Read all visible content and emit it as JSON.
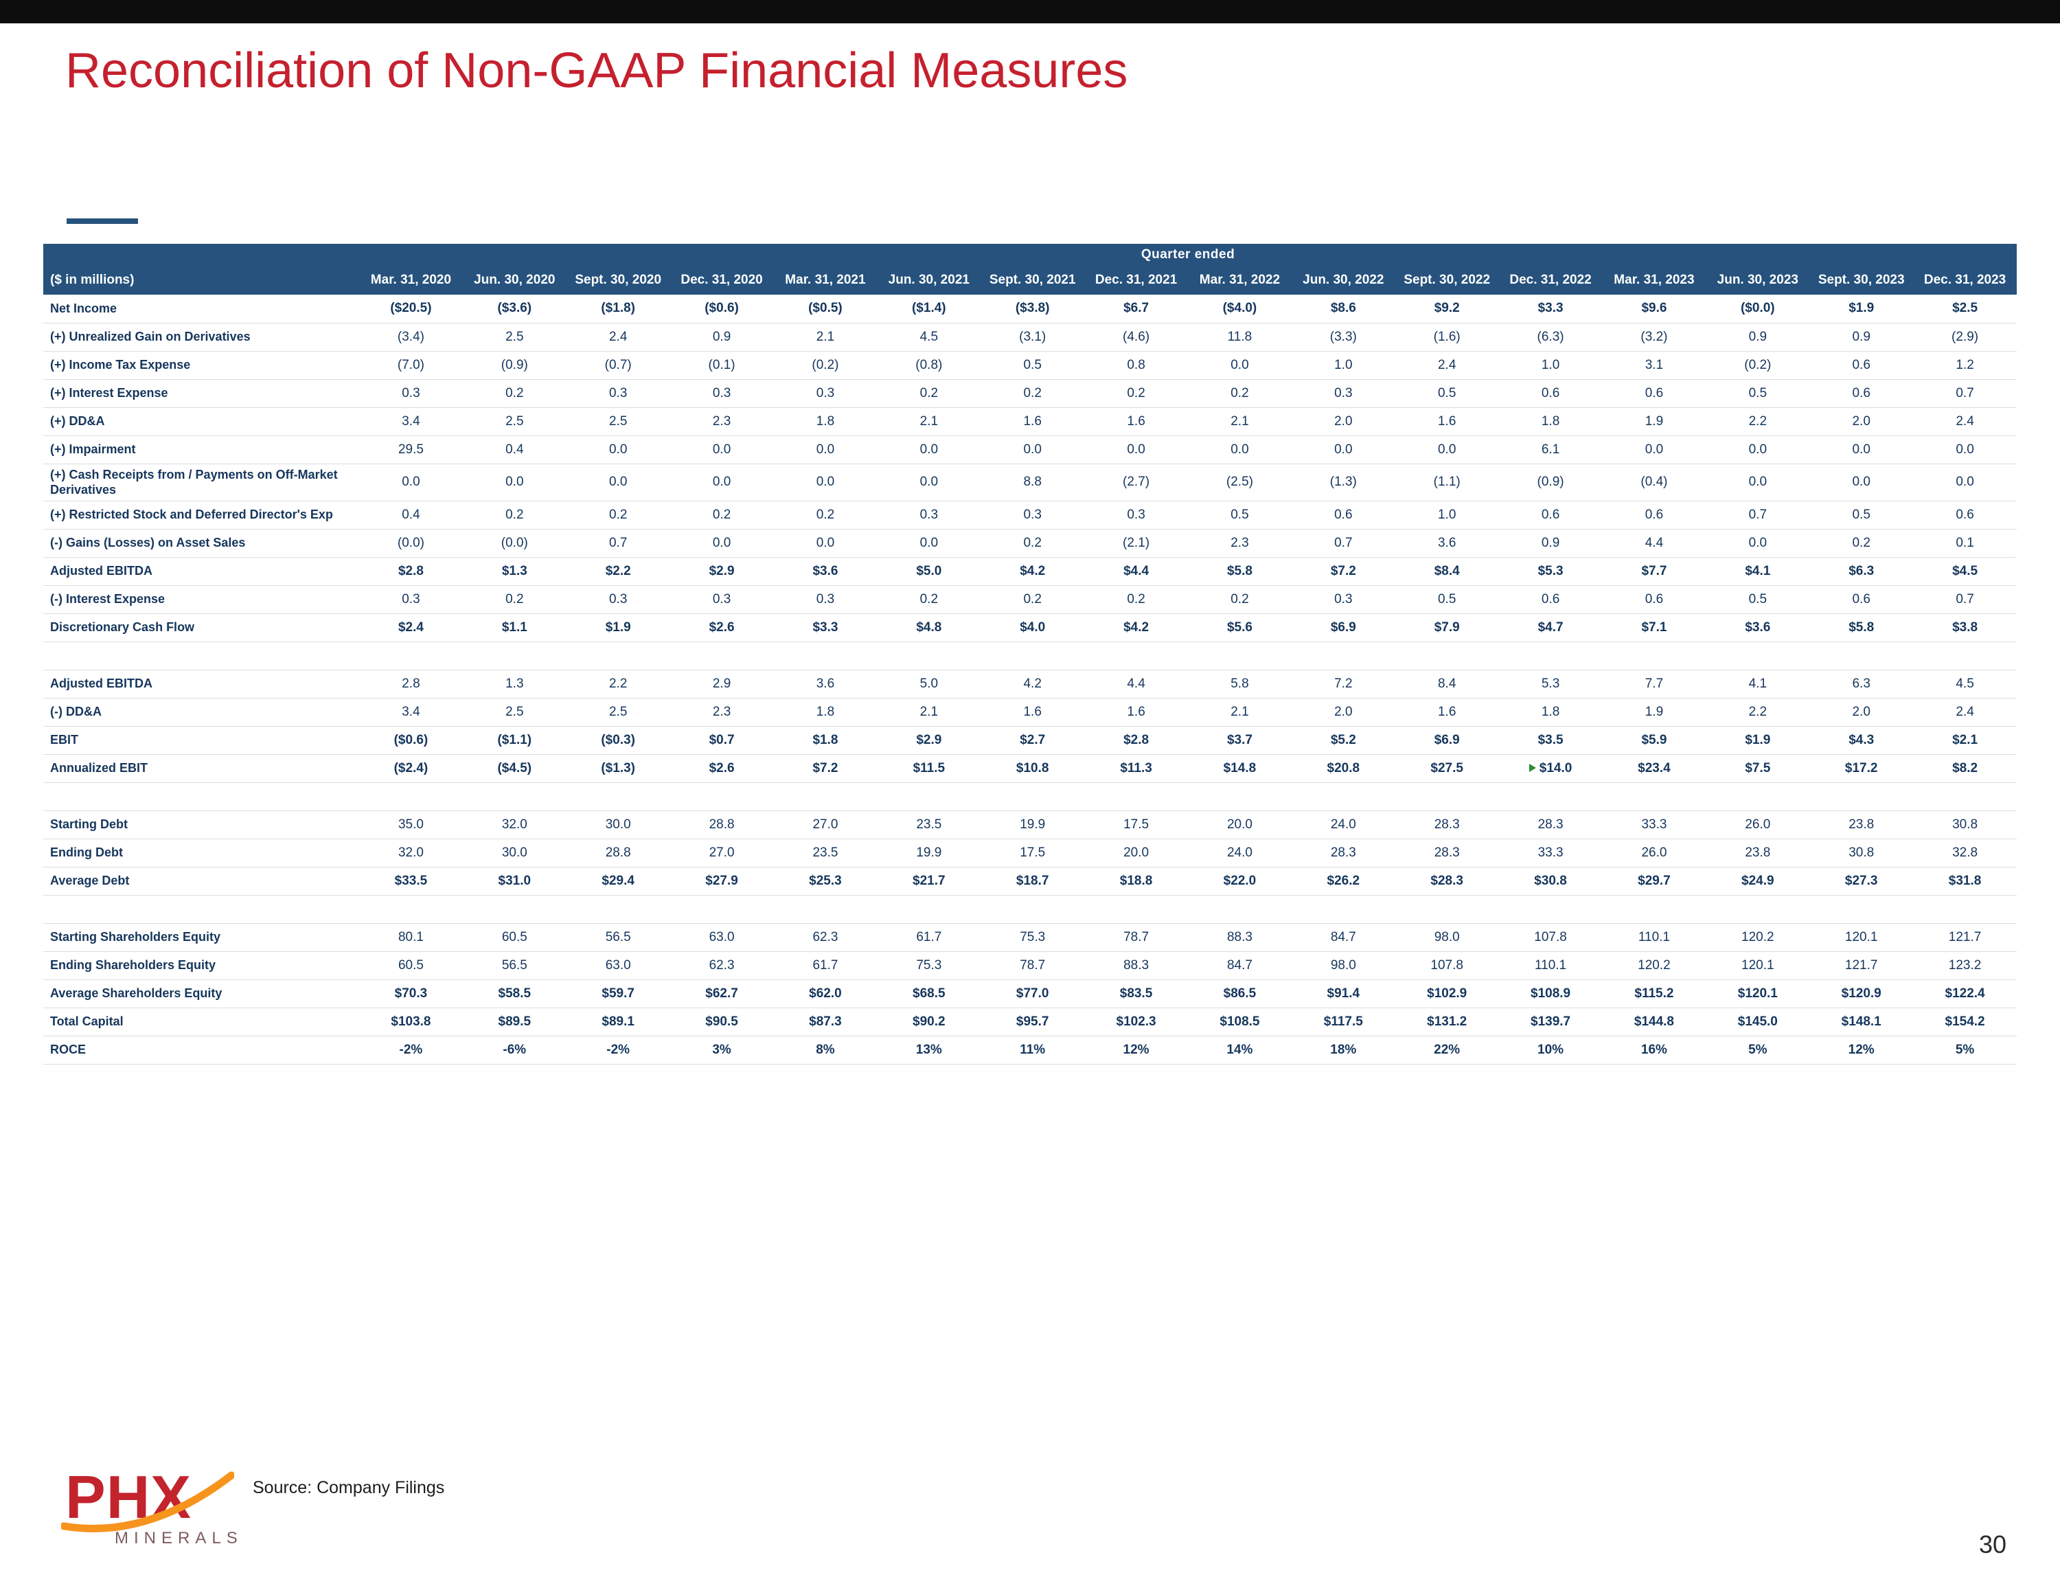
{
  "slide": {
    "title": "Reconciliation of Non-GAAP Financial Measures",
    "source_note": "Source: Company Filings",
    "page_number": "30",
    "logo": {
      "text": "PHX",
      "subtitle": "MINERALS"
    },
    "colors": {
      "title_red": "#C5202E",
      "header_navy": "#26527D",
      "accent_blue": "#26537C",
      "body_navy": "#16365C",
      "logo_orange": "#F7941D",
      "logo_red": "#C3232D",
      "marker_green": "#2F8B2F"
    }
  },
  "table": {
    "group_header": "Quarter ended",
    "row_label_header": "($ in millions)",
    "columns": [
      "Mar. 31, 2020",
      "Jun. 30, 2020",
      "Sept. 30, 2020",
      "Dec. 31, 2020",
      "Mar. 31, 2021",
      "Jun. 30, 2021",
      "Sept. 30, 2021",
      "Dec. 31, 2021",
      "Mar. 31, 2022",
      "Jun. 30, 2022",
      "Sept. 30, 2022",
      "Dec. 31, 2022",
      "Mar. 31, 2023",
      "Jun. 30, 2023",
      "Sept. 30, 2023",
      "Dec. 31, 2023"
    ],
    "rows": [
      {
        "label": "Net Income",
        "bold": true,
        "values": [
          "($20.5)",
          "($3.6)",
          "($1.8)",
          "($0.6)",
          "($0.5)",
          "($1.4)",
          "($3.8)",
          "$6.7",
          "($4.0)",
          "$8.6",
          "$9.2",
          "$3.3",
          "$9.6",
          "($0.0)",
          "$1.9",
          "$2.5"
        ]
      },
      {
        "label": "(+) Unrealized Gain on Derivatives",
        "bold": false,
        "values": [
          "(3.4)",
          "2.5",
          "2.4",
          "0.9",
          "2.1",
          "4.5",
          "(3.1)",
          "(4.6)",
          "11.8",
          "(3.3)",
          "(1.6)",
          "(6.3)",
          "(3.2)",
          "0.9",
          "0.9",
          "(2.9)"
        ]
      },
      {
        "label": "(+) Income Tax Expense",
        "bold": false,
        "values": [
          "(7.0)",
          "(0.9)",
          "(0.7)",
          "(0.1)",
          "(0.2)",
          "(0.8)",
          "0.5",
          "0.8",
          "0.0",
          "1.0",
          "2.4",
          "1.0",
          "3.1",
          "(0.2)",
          "0.6",
          "1.2"
        ]
      },
      {
        "label": "(+) Interest Expense",
        "bold": false,
        "values": [
          "0.3",
          "0.2",
          "0.3",
          "0.3",
          "0.3",
          "0.2",
          "0.2",
          "0.2",
          "0.2",
          "0.3",
          "0.5",
          "0.6",
          "0.6",
          "0.5",
          "0.6",
          "0.7"
        ]
      },
      {
        "label": "(+) DD&A",
        "bold": false,
        "values": [
          "3.4",
          "2.5",
          "2.5",
          "2.3",
          "1.8",
          "2.1",
          "1.6",
          "1.6",
          "2.1",
          "2.0",
          "1.6",
          "1.8",
          "1.9",
          "2.2",
          "2.0",
          "2.4"
        ]
      },
      {
        "label": "(+) Impairment",
        "bold": false,
        "values": [
          "29.5",
          "0.4",
          "0.0",
          "0.0",
          "0.0",
          "0.0",
          "0.0",
          "0.0",
          "0.0",
          "0.0",
          "0.0",
          "6.1",
          "0.0",
          "0.0",
          "0.0",
          "0.0"
        ]
      },
      {
        "label": "(+) Cash Receipts from / Payments on Off-Market Derivatives",
        "bold": false,
        "values": [
          "0.0",
          "0.0",
          "0.0",
          "0.0",
          "0.0",
          "0.0",
          "8.8",
          "(2.7)",
          "(2.5)",
          "(1.3)",
          "(1.1)",
          "(0.9)",
          "(0.4)",
          "0.0",
          "0.0",
          "0.0"
        ]
      },
      {
        "label": "(+) Restricted Stock and Deferred Director's Exp",
        "bold": false,
        "values": [
          "0.4",
          "0.2",
          "0.2",
          "0.2",
          "0.2",
          "0.3",
          "0.3",
          "0.3",
          "0.5",
          "0.6",
          "1.0",
          "0.6",
          "0.6",
          "0.7",
          "0.5",
          "0.6"
        ]
      },
      {
        "label": "(-) Gains (Losses) on Asset Sales",
        "bold": false,
        "values": [
          "(0.0)",
          "(0.0)",
          "0.7",
          "0.0",
          "0.0",
          "0.0",
          "0.2",
          "(2.1)",
          "2.3",
          "0.7",
          "3.6",
          "0.9",
          "4.4",
          "0.0",
          "0.2",
          "0.1"
        ]
      },
      {
        "label": "Adjusted EBITDA",
        "bold": true,
        "values": [
          "$2.8",
          "$1.3",
          "$2.2",
          "$2.9",
          "$3.6",
          "$5.0",
          "$4.2",
          "$4.4",
          "$5.8",
          "$7.2",
          "$8.4",
          "$5.3",
          "$7.7",
          "$4.1",
          "$6.3",
          "$4.5"
        ]
      },
      {
        "label": "(-) Interest Expense",
        "bold": false,
        "values": [
          "0.3",
          "0.2",
          "0.3",
          "0.3",
          "0.3",
          "0.2",
          "0.2",
          "0.2",
          "0.2",
          "0.3",
          "0.5",
          "0.6",
          "0.6",
          "0.5",
          "0.6",
          "0.7"
        ]
      },
      {
        "label": "Discretionary Cash Flow",
        "bold": true,
        "values": [
          "$2.4",
          "$1.1",
          "$1.9",
          "$2.6",
          "$3.3",
          "$4.8",
          "$4.0",
          "$4.2",
          "$5.6",
          "$6.9",
          "$7.9",
          "$4.7",
          "$7.1",
          "$3.6",
          "$5.8",
          "$3.8"
        ]
      },
      {
        "type": "spacer"
      },
      {
        "label": "Adjusted EBITDA",
        "bold": false,
        "values": [
          "2.8",
          "1.3",
          "2.2",
          "2.9",
          "3.6",
          "5.0",
          "4.2",
          "4.4",
          "5.8",
          "7.2",
          "8.4",
          "5.3",
          "7.7",
          "4.1",
          "6.3",
          "4.5"
        ]
      },
      {
        "label": "(-) DD&A",
        "bold": false,
        "values": [
          "3.4",
          "2.5",
          "2.5",
          "2.3",
          "1.8",
          "2.1",
          "1.6",
          "1.6",
          "2.1",
          "2.0",
          "1.6",
          "1.8",
          "1.9",
          "2.2",
          "2.0",
          "2.4"
        ]
      },
      {
        "label": "EBIT",
        "bold": true,
        "values": [
          "($0.6)",
          "($1.1)",
          "($0.3)",
          "$0.7",
          "$1.8",
          "$2.9",
          "$2.7",
          "$2.8",
          "$3.7",
          "$5.2",
          "$6.9",
          "$3.5",
          "$5.9",
          "$1.9",
          "$4.3",
          "$2.1"
        ]
      },
      {
        "label": "Annualized EBIT",
        "bold": true,
        "marker_col": 11,
        "values": [
          "($2.4)",
          "($4.5)",
          "($1.3)",
          "$2.6",
          "$7.2",
          "$11.5",
          "$10.8",
          "$11.3",
          "$14.8",
          "$20.8",
          "$27.5",
          "$14.0",
          "$23.4",
          "$7.5",
          "$17.2",
          "$8.2"
        ]
      },
      {
        "type": "spacer"
      },
      {
        "label": "Starting Debt",
        "bold": false,
        "values": [
          "35.0",
          "32.0",
          "30.0",
          "28.8",
          "27.0",
          "23.5",
          "19.9",
          "17.5",
          "20.0",
          "24.0",
          "28.3",
          "28.3",
          "33.3",
          "26.0",
          "23.8",
          "30.8"
        ]
      },
      {
        "label": "Ending Debt",
        "bold": false,
        "values": [
          "32.0",
          "30.0",
          "28.8",
          "27.0",
          "23.5",
          "19.9",
          "17.5",
          "20.0",
          "24.0",
          "28.3",
          "28.3",
          "33.3",
          "26.0",
          "23.8",
          "30.8",
          "32.8"
        ]
      },
      {
        "label": "Average Debt",
        "bold": true,
        "values": [
          "$33.5",
          "$31.0",
          "$29.4",
          "$27.9",
          "$25.3",
          "$21.7",
          "$18.7",
          "$18.8",
          "$22.0",
          "$26.2",
          "$28.3",
          "$30.8",
          "$29.7",
          "$24.9",
          "$27.3",
          "$31.8"
        ]
      },
      {
        "type": "spacer"
      },
      {
        "label": "Starting Shareholders Equity",
        "bold": false,
        "values": [
          "80.1",
          "60.5",
          "56.5",
          "63.0",
          "62.3",
          "61.7",
          "75.3",
          "78.7",
          "88.3",
          "84.7",
          "98.0",
          "107.8",
          "110.1",
          "120.2",
          "120.1",
          "121.7"
        ]
      },
      {
        "label": "Ending Shareholders Equity",
        "bold": false,
        "values": [
          "60.5",
          "56.5",
          "63.0",
          "62.3",
          "61.7",
          "75.3",
          "78.7",
          "88.3",
          "84.7",
          "98.0",
          "107.8",
          "110.1",
          "120.2",
          "120.1",
          "121.7",
          "123.2"
        ]
      },
      {
        "label": "Average Shareholders Equity",
        "bold": true,
        "values": [
          "$70.3",
          "$58.5",
          "$59.7",
          "$62.7",
          "$62.0",
          "$68.5",
          "$77.0",
          "$83.5",
          "$86.5",
          "$91.4",
          "$102.9",
          "$108.9",
          "$115.2",
          "$120.1",
          "$120.9",
          "$122.4"
        ]
      },
      {
        "label": "Total Capital",
        "bold": true,
        "values": [
          "$103.8",
          "$89.5",
          "$89.1",
          "$90.5",
          "$87.3",
          "$90.2",
          "$95.7",
          "$102.3",
          "$108.5",
          "$117.5",
          "$131.2",
          "$139.7",
          "$144.8",
          "$145.0",
          "$148.1",
          "$154.2"
        ]
      },
      {
        "label": "ROCE",
        "bold": true,
        "values": [
          "-2%",
          "-6%",
          "-2%",
          "3%",
          "8%",
          "13%",
          "11%",
          "12%",
          "14%",
          "18%",
          "22%",
          "10%",
          "16%",
          "5%",
          "12%",
          "5%"
        ]
      }
    ]
  }
}
